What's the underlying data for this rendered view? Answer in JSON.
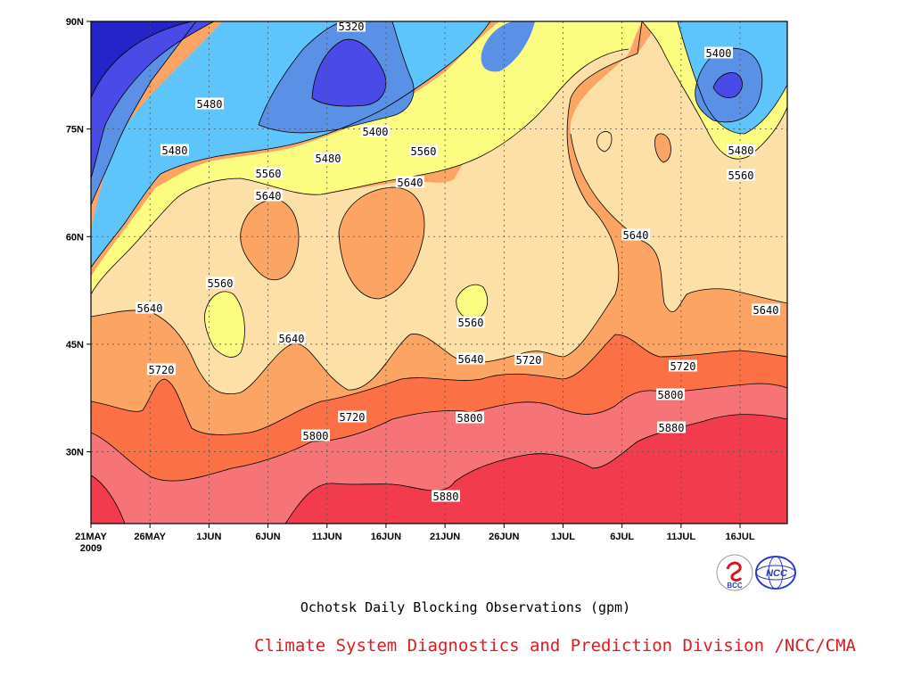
{
  "chart_data": {
    "type": "filled-contour",
    "title": "Ochotsk Daily Blocking Observations (gpm)",
    "xlabel": "",
    "ylabel": "",
    "x_ticks": [
      "21MAY",
      "26MAY",
      "1JUN",
      "6JUN",
      "11JUN",
      "16JUN",
      "21JUN",
      "26JUN",
      "1JUL",
      "6JUL",
      "11JUL",
      "16JUL"
    ],
    "x_year_label": "2009",
    "x_range": [
      "2009-05-21",
      "2009-07-19"
    ],
    "y_ticks": [
      "30N",
      "45N",
      "60N",
      "75N",
      "90N"
    ],
    "y_range_deg": [
      20,
      90
    ],
    "grid": "dotted",
    "contour_levels": [
      5320,
      5400,
      5480,
      5560,
      5640,
      5720,
      5800,
      5880
    ],
    "fill_colors": [
      "#2424c8",
      "#4a4ae8",
      "#5a90e6",
      "#5ec4fc",
      "#fcfc80",
      "#fce0a8",
      "#fca464",
      "#fc7046",
      "#f67478",
      "#f23c4e"
    ],
    "contour_labels": [
      {
        "value": "5320"
      },
      {
        "value": "5400"
      },
      {
        "value": "5400"
      },
      {
        "value": "5480"
      },
      {
        "value": "5480"
      },
      {
        "value": "5480"
      },
      {
        "value": "5480"
      },
      {
        "value": "5560"
      },
      {
        "value": "5560"
      },
      {
        "value": "5560"
      },
      {
        "value": "5560"
      },
      {
        "value": "5560"
      },
      {
        "value": "5640"
      },
      {
        "value": "5640"
      },
      {
        "value": "5640"
      },
      {
        "value": "5640"
      },
      {
        "value": "5640"
      },
      {
        "value": "5640"
      },
      {
        "value": "5640"
      },
      {
        "value": "5720"
      },
      {
        "value": "5720"
      },
      {
        "value": "5720"
      },
      {
        "value": "5720"
      },
      {
        "value": "5800"
      },
      {
        "value": "5800"
      },
      {
        "value": "5800"
      },
      {
        "value": "5880"
      },
      {
        "value": "5880"
      }
    ]
  },
  "caption": "Ochotsk Daily Blocking Observations (gpm)",
  "credit": "Climate System Diagnostics and Prediction Division /NCC/CMA",
  "logos": {
    "bcc_text": "BCC",
    "ncc_text": "NCC",
    "bcc_color": "#d8141c",
    "ncc_color": "#2a3cc8"
  }
}
